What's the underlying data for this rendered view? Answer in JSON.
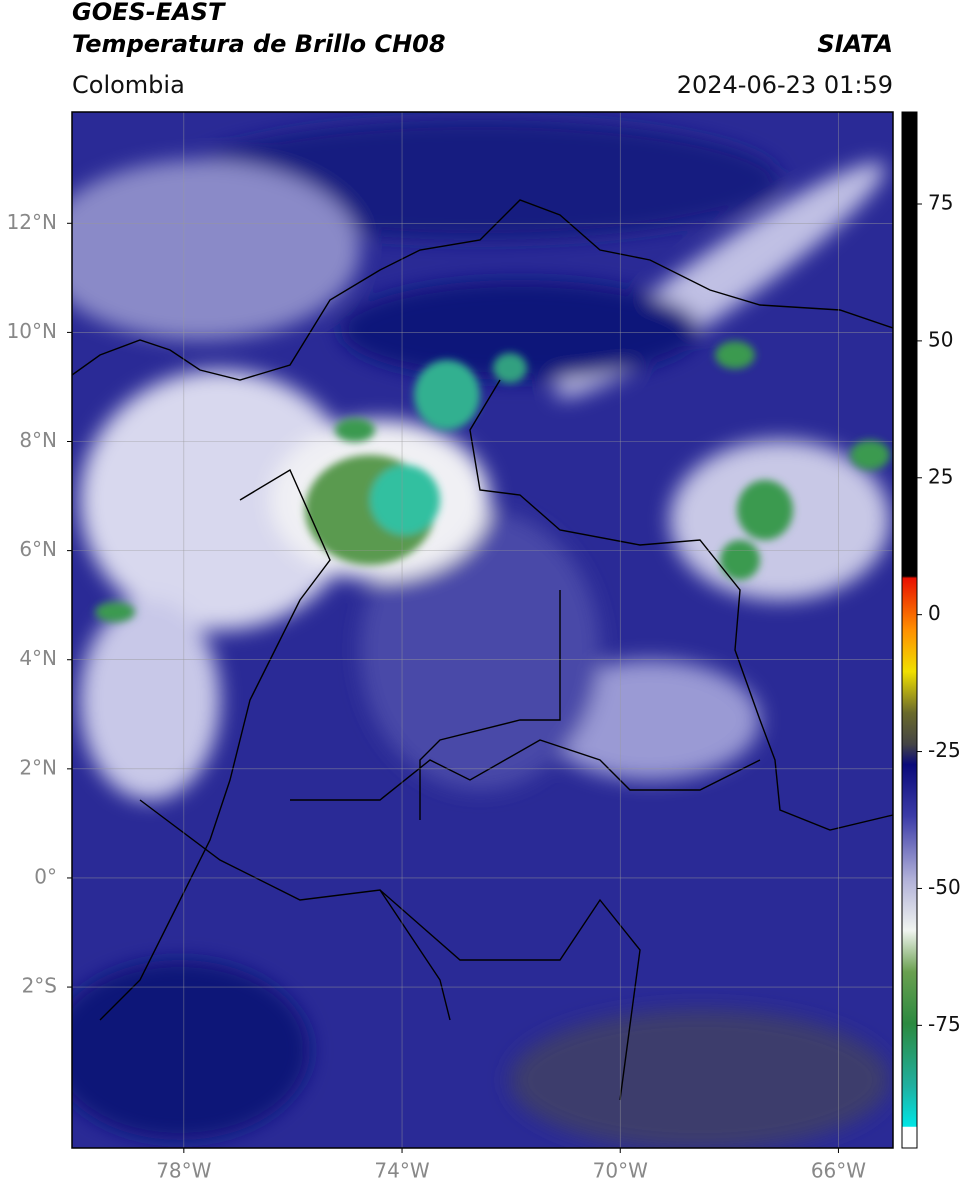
{
  "header": {
    "title": "GOES-EAST",
    "subtitle": "Temperatura de Brillo CH08",
    "source": "SIATA",
    "region": "Colombia",
    "datetime": "2024-06-23 01:59"
  },
  "map": {
    "xlim": [
      -80.05,
      -65
    ],
    "ylim": [
      -4.95,
      14.04
    ],
    "xticks": [
      {
        "value": -78,
        "label": "78°W"
      },
      {
        "value": -74,
        "label": "74°W"
      },
      {
        "value": -70,
        "label": "70°W"
      },
      {
        "value": -66,
        "label": "66°W"
      }
    ],
    "yticks": [
      {
        "value": 12,
        "label": "12°N"
      },
      {
        "value": 10,
        "label": "10°N"
      },
      {
        "value": 8,
        "label": "8°N"
      },
      {
        "value": 6,
        "label": "6°N"
      },
      {
        "value": 4,
        "label": "4°N"
      },
      {
        "value": 2,
        "label": "2°N"
      },
      {
        "value": 0,
        "label": "0°"
      },
      {
        "value": -2,
        "label": "2°S"
      }
    ],
    "grid": true
  },
  "colorbar": {
    "lim": [
      -97.4,
      91.8
    ],
    "ticks": [
      75,
      50,
      25,
      0,
      -25,
      -50,
      -75
    ]
  }
}
